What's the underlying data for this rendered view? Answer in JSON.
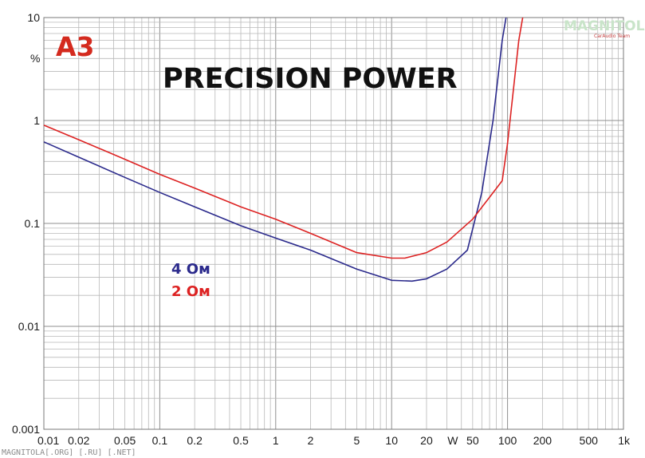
{
  "chart_data": {
    "type": "line",
    "title": "PRECISION POWER",
    "xlabel": "W",
    "ylabel": "%",
    "x_scale": "log",
    "y_scale": "log",
    "xlim": [
      0.01,
      1000
    ],
    "ylim": [
      0.001,
      10
    ],
    "grid": true,
    "legend_position": "center-left",
    "x_ticks": [
      "0.01",
      "0.02",
      "0.05",
      "0.1",
      "0.2",
      "0.5",
      "1",
      "2",
      "5",
      "10",
      "20",
      "W",
      "50",
      "100",
      "200",
      "500",
      "1k"
    ],
    "y_ticks": [
      "10",
      "1",
      "0.1",
      "0.01",
      "0.001"
    ],
    "series": [
      {
        "name": "4 Ом",
        "color": "#2b2a8c",
        "x": [
          0.01,
          0.02,
          0.05,
          0.1,
          0.2,
          0.5,
          1,
          2,
          5,
          10,
          15,
          20,
          30,
          45,
          60,
          75,
          90,
          97
        ],
        "y": [
          0.62,
          0.44,
          0.28,
          0.2,
          0.145,
          0.095,
          0.072,
          0.055,
          0.036,
          0.028,
          0.0275,
          0.029,
          0.036,
          0.055,
          0.2,
          1.0,
          6.0,
          10
        ]
      },
      {
        "name": "2 Ом",
        "color": "#dd2222",
        "x": [
          0.01,
          0.02,
          0.05,
          0.1,
          0.2,
          0.5,
          1,
          2,
          5,
          10,
          13,
          20,
          30,
          50,
          70,
          90,
          100,
          110,
          125,
          135
        ],
        "y": [
          0.9,
          0.65,
          0.42,
          0.3,
          0.22,
          0.145,
          0.11,
          0.08,
          0.052,
          0.046,
          0.046,
          0.052,
          0.066,
          0.11,
          0.18,
          0.26,
          0.6,
          1.6,
          6.0,
          10
        ]
      }
    ]
  },
  "brand": {
    "logo": "A3"
  },
  "watermark": {
    "line": "MAGNITOLA[.ORG] [.RU] [.NET]",
    "logo": "MAGNITOLA",
    "team": "CarAudio Team"
  }
}
